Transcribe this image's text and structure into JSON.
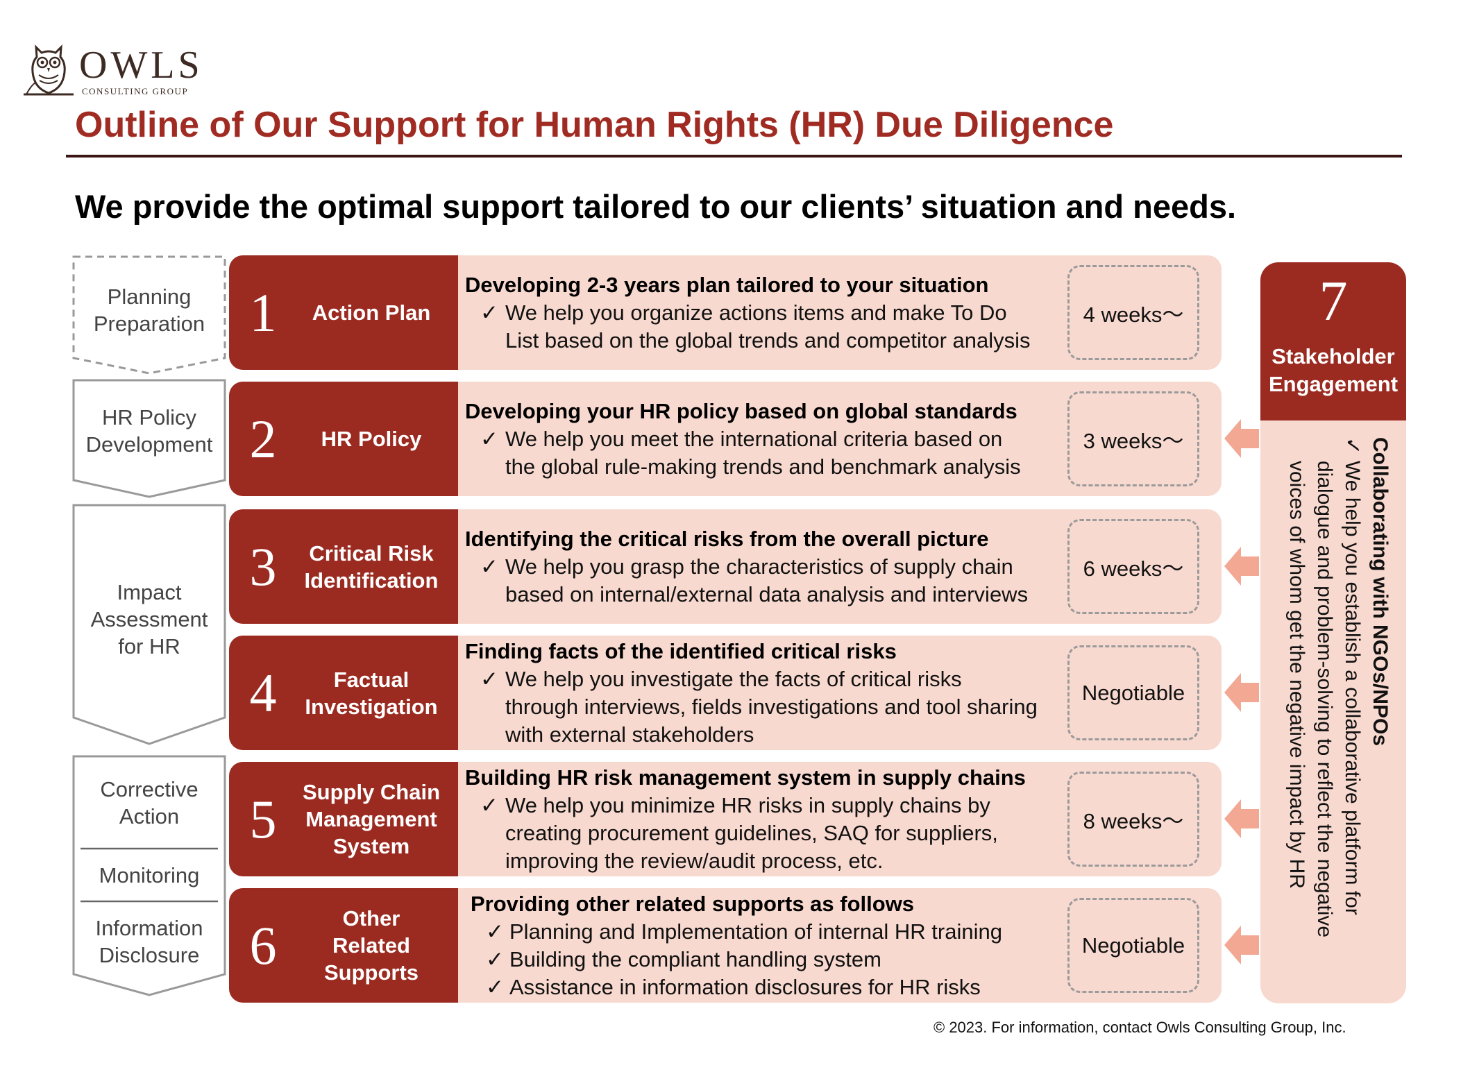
{
  "logo": {
    "brand": "OWLS",
    "sub": "CONSULTING GROUP"
  },
  "title": "Outline of Our Support for Human Rights (HR) Due Diligence",
  "tagline": "We provide the optimal support tailored to our clients’ situation and needs.",
  "colors": {
    "accent": "#9b2b21",
    "title": "#a02b22",
    "panel": "#f8d9cf",
    "arrow": "#f2a892"
  },
  "phases": [
    {
      "lines": [
        "Planning",
        "Preparation"
      ]
    },
    {
      "lines": [
        "HR Policy",
        "Development"
      ]
    },
    {
      "lines": [
        "Impact",
        "Assessment",
        "for HR"
      ]
    },
    {
      "groups": [
        [
          "Corrective",
          "Action"
        ],
        [
          "Monitoring"
        ],
        [
          "Information",
          "Disclosure"
        ]
      ]
    }
  ],
  "check_mark": "✓",
  "steps": [
    {
      "num": "1",
      "name": [
        "Action Plan"
      ],
      "heading": "Developing 2-3 years plan tailored to your situation",
      "bullets": [
        [
          "We help you organize actions items and make To Do",
          "List based on the global trends and competitor analysis"
        ]
      ],
      "duration": "4 weeks〜"
    },
    {
      "num": "2",
      "name": [
        "HR Policy"
      ],
      "heading": "Developing your HR policy based on global standards",
      "bullets": [
        [
          "We help you meet the international criteria based on",
          "the global rule-making trends and benchmark analysis"
        ]
      ],
      "duration": "3 weeks〜"
    },
    {
      "num": "3",
      "name": [
        "Critical Risk",
        "Identification"
      ],
      "heading": "Identifying the critical risks from the overall picture",
      "bullets": [
        [
          "We help you grasp the characteristics of supply chain",
          "based on internal/external data analysis and interviews"
        ]
      ],
      "duration": "6 weeks〜"
    },
    {
      "num": "4",
      "name": [
        "Factual",
        "Investigation"
      ],
      "heading": "Finding facts of the identified critical risks",
      "bullets": [
        [
          "We help you investigate the facts of critical risks",
          "through interviews, fields investigations and tool sharing",
          "with external stakeholders"
        ]
      ],
      "duration": "Negotiable"
    },
    {
      "num": "5",
      "name": [
        "Supply Chain",
        "Management",
        "System"
      ],
      "heading": "Building HR risk management system in supply chains",
      "bullets": [
        [
          "We help you minimize HR risks in supply chains by",
          "creating procurement guidelines, SAQ for suppliers,",
          "improving the review/audit process, etc."
        ]
      ],
      "duration": "8 weeks〜"
    },
    {
      "num": "6",
      "name": [
        "Other",
        "Related",
        "Supports"
      ],
      "heading": "Providing other related supports as follows",
      "bullets": [
        [
          "Planning and Implementation of internal HR training"
        ],
        [
          "Building the compliant handling system"
        ],
        [
          "Assistance in information disclosures for HR risks"
        ]
      ],
      "duration": "Negotiable"
    }
  ],
  "stakeholder": {
    "num": "7",
    "name": [
      "Stakeholder",
      "Engagement"
    ],
    "heading": "Collaborating with NGOs/NPOs",
    "bullet": [
      "We help you establish a collaborative platform for",
      "dialogue and problem-solving to reflect the negative",
      "voices of whom get the negative impact by HR"
    ]
  },
  "footer": "© 2023. For information, contact Owls Consulting Group, Inc."
}
